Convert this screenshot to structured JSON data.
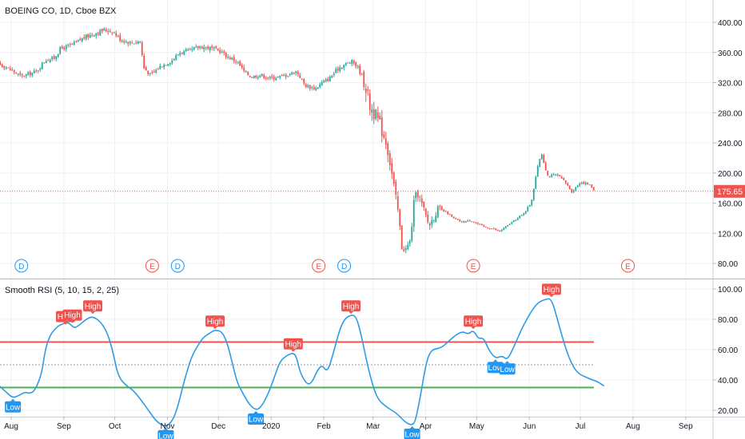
{
  "header": {
    "main_legend": "BOEING CO, 1D, Cboe BZX",
    "indicator_legend": "Smooth RSI  (5, 10, 15, 2, 25)"
  },
  "colors": {
    "up": "#26a69a",
    "down": "#ef5350",
    "rsi_line": "#2e9be6",
    "upper_band": "#ef5350",
    "lower_band": "#4caf50",
    "mid_band": "#9e9e9e",
    "price_line": "#ef5350",
    "high_tag": "#ef5350",
    "low_tag": "#2196f3",
    "dividend_event": "#2196f3",
    "earnings_event": "#ef5350"
  },
  "chart_data": [
    {
      "type": "candlestick",
      "title": "BOEING CO, 1D, Cboe BZX",
      "y_ticks": [
        "400.00",
        "360.00",
        "320.00",
        "280.00",
        "240.00",
        "200.00",
        "160.00",
        "120.00",
        "80.00"
      ],
      "ylim": [
        60,
        420
      ],
      "last_price": 175.65,
      "last_price_label": "175.65",
      "x_ticks": [
        "Aug",
        "Sep",
        "Oct",
        "Nov",
        "Dec",
        "2020",
        "Feb",
        "Mar",
        "Apr",
        "May",
        "Jun",
        "Jul",
        "Aug",
        "Sep"
      ],
      "grid": true,
      "price_path": [
        [
          "2019-07-22",
          356
        ],
        [
          "2019-07-25",
          345
        ],
        [
          "2019-07-31",
          338
        ],
        [
          "2019-08-07",
          328
        ],
        [
          "2019-08-12",
          332
        ],
        [
          "2019-08-16",
          335
        ],
        [
          "2019-08-21",
          350
        ],
        [
          "2019-08-26",
          352
        ],
        [
          "2019-08-30",
          365
        ],
        [
          "2019-09-06",
          370
        ],
        [
          "2019-09-13",
          380
        ],
        [
          "2019-09-20",
          386
        ],
        [
          "2019-09-25",
          390
        ],
        [
          "2019-09-30",
          388
        ],
        [
          "2019-10-04",
          378
        ],
        [
          "2019-10-10",
          373
        ],
        [
          "2019-10-16",
          375
        ],
        [
          "2019-10-18",
          340
        ],
        [
          "2019-10-22",
          330
        ],
        [
          "2019-10-28",
          342
        ],
        [
          "2019-11-04",
          350
        ],
        [
          "2019-11-08",
          360
        ],
        [
          "2019-11-14",
          362
        ],
        [
          "2019-11-20",
          368
        ],
        [
          "2019-11-26",
          366
        ],
        [
          "2019-12-02",
          362
        ],
        [
          "2019-12-06",
          355
        ],
        [
          "2019-12-12",
          348
        ],
        [
          "2019-12-16",
          335
        ],
        [
          "2019-12-20",
          328
        ],
        [
          "2019-12-26",
          330
        ],
        [
          "2019-12-31",
          326
        ],
        [
          "2020-01-06",
          328
        ],
        [
          "2020-01-10",
          330
        ],
        [
          "2020-01-16",
          335
        ],
        [
          "2020-01-21",
          316
        ],
        [
          "2020-01-27",
          312
        ],
        [
          "2020-01-31",
          320
        ],
        [
          "2020-02-04",
          325
        ],
        [
          "2020-02-10",
          340
        ],
        [
          "2020-02-14",
          345
        ],
        [
          "2020-02-18",
          348
        ],
        [
          "2020-02-21",
          340
        ],
        [
          "2020-02-25",
          322
        ],
        [
          "2020-02-28",
          290
        ],
        [
          "2020-03-04",
          270
        ],
        [
          "2020-03-09",
          240
        ],
        [
          "2020-03-12",
          200
        ],
        [
          "2020-03-16",
          145
        ],
        [
          "2020-03-18",
          100
        ],
        [
          "2020-03-20",
          98
        ],
        [
          "2020-03-23",
          110
        ],
        [
          "2020-03-25",
          160
        ],
        [
          "2020-03-27",
          175
        ],
        [
          "2020-03-31",
          150
        ],
        [
          "2020-04-03",
          130
        ],
        [
          "2020-04-08",
          152
        ],
        [
          "2020-04-13",
          148
        ],
        [
          "2020-04-17",
          140
        ],
        [
          "2020-04-22",
          135
        ],
        [
          "2020-04-28",
          137
        ],
        [
          "2020-05-01",
          133
        ],
        [
          "2020-05-06",
          128
        ],
        [
          "2020-05-11",
          126
        ],
        [
          "2020-05-14",
          122
        ],
        [
          "2020-05-19",
          130
        ],
        [
          "2020-05-22",
          135
        ],
        [
          "2020-05-28",
          145
        ],
        [
          "2020-06-02",
          160
        ],
        [
          "2020-06-05",
          198
        ],
        [
          "2020-06-08",
          228
        ],
        [
          "2020-06-10",
          210
        ],
        [
          "2020-06-12",
          195
        ],
        [
          "2020-06-17",
          198
        ],
        [
          "2020-06-22",
          188
        ],
        [
          "2020-06-26",
          175
        ],
        [
          "2020-07-01",
          188
        ],
        [
          "2020-07-06",
          185
        ],
        [
          "2020-07-10",
          175.65
        ]
      ],
      "events": [
        {
          "type": "dividend",
          "label": "D",
          "date": "2019-08-07"
        },
        {
          "type": "earnings",
          "label": "E",
          "date": "2019-10-23"
        },
        {
          "type": "dividend",
          "label": "D",
          "date": "2019-11-07"
        },
        {
          "type": "earnings",
          "label": "E",
          "date": "2020-01-29"
        },
        {
          "type": "dividend",
          "label": "D",
          "date": "2020-02-13"
        },
        {
          "type": "earnings",
          "label": "E",
          "date": "2020-04-29"
        },
        {
          "type": "earnings",
          "label": "E",
          "date": "2020-07-29"
        }
      ]
    },
    {
      "type": "line",
      "title": "Smooth RSI  (5, 10, 15, 2, 25)",
      "y_ticks": [
        "100.00",
        "80.00",
        "60.00",
        "40.00",
        "20.00"
      ],
      "ylim": [
        3,
        103
      ],
      "levels": {
        "upper": 65,
        "middle": 50,
        "lower": 35
      },
      "series": [
        {
          "name": "",
          "points": [
            [
              "2019-07-15",
              58
            ],
            [
              "2019-07-19",
              45
            ],
            [
              "2019-07-24",
              37
            ],
            [
              "2019-07-29",
              32
            ],
            [
              "2019-08-02",
              28
            ],
            [
              "2019-08-06",
              30
            ],
            [
              "2019-08-09",
              32
            ],
            [
              "2019-08-12",
              31
            ],
            [
              "2019-08-15",
              33
            ],
            [
              "2019-08-19",
              44
            ],
            [
              "2019-08-21",
              60
            ],
            [
              "2019-08-24",
              70
            ],
            [
              "2019-08-28",
              75
            ],
            [
              "2019-08-31",
              77
            ],
            [
              "2019-09-04",
              78
            ],
            [
              "2019-09-07",
              74
            ],
            [
              "2019-09-10",
              76
            ],
            [
              "2019-09-14",
              80
            ],
            [
              "2019-09-18",
              82
            ],
            [
              "2019-09-23",
              78
            ],
            [
              "2019-09-27",
              70
            ],
            [
              "2019-09-30",
              58
            ],
            [
              "2019-10-03",
              42
            ],
            [
              "2019-10-08",
              36
            ],
            [
              "2019-10-12",
              33
            ],
            [
              "2019-10-17",
              26
            ],
            [
              "2019-10-22",
              18
            ],
            [
              "2019-10-26",
              12
            ],
            [
              "2019-10-31",
              9
            ],
            [
              "2019-11-04",
              13
            ],
            [
              "2019-11-07",
              22
            ],
            [
              "2019-11-11",
              40
            ],
            [
              "2019-11-15",
              55
            ],
            [
              "2019-11-19",
              63
            ],
            [
              "2019-11-22",
              68
            ],
            [
              "2019-11-26",
              71
            ],
            [
              "2019-11-29",
              73
            ],
            [
              "2019-12-03",
              72
            ],
            [
              "2019-12-06",
              65
            ],
            [
              "2019-12-09",
              52
            ],
            [
              "2019-12-12",
              38
            ],
            [
              "2019-12-16",
              30
            ],
            [
              "2019-12-19",
              24
            ],
            [
              "2019-12-23",
              20
            ],
            [
              "2019-12-26",
              22
            ],
            [
              "2019-12-30",
              30
            ],
            [
              "2020-01-03",
              42
            ],
            [
              "2020-01-06",
              52
            ],
            [
              "2020-01-10",
              56
            ],
            [
              "2020-01-14",
              58
            ],
            [
              "2020-01-16",
              55
            ],
            [
              "2020-01-18",
              45
            ],
            [
              "2020-01-22",
              37
            ],
            [
              "2020-01-25",
              38
            ],
            [
              "2020-01-28",
              46
            ],
            [
              "2020-01-31",
              50
            ],
            [
              "2020-02-03",
              45
            ],
            [
              "2020-02-06",
              55
            ],
            [
              "2020-02-10",
              72
            ],
            [
              "2020-02-13",
              80
            ],
            [
              "2020-02-17",
              83
            ],
            [
              "2020-02-20",
              82
            ],
            [
              "2020-02-23",
              70
            ],
            [
              "2020-02-27",
              48
            ],
            [
              "2020-03-03",
              28
            ],
            [
              "2020-03-09",
              22
            ],
            [
              "2020-03-15",
              18
            ],
            [
              "2020-03-20",
              12
            ],
            [
              "2020-03-24",
              10
            ],
            [
              "2020-03-26",
              13
            ],
            [
              "2020-03-29",
              30
            ],
            [
              "2020-04-01",
              50
            ],
            [
              "2020-04-04",
              60
            ],
            [
              "2020-04-10",
              61
            ],
            [
              "2020-04-14",
              65
            ],
            [
              "2020-04-19",
              70
            ],
            [
              "2020-04-23",
              72
            ],
            [
              "2020-04-26",
              70
            ],
            [
              "2020-04-29",
              73
            ],
            [
              "2020-05-02",
              67
            ],
            [
              "2020-05-05",
              68
            ],
            [
              "2020-05-08",
              60
            ],
            [
              "2020-05-12",
              54
            ],
            [
              "2020-05-16",
              56
            ],
            [
              "2020-05-19",
              53
            ],
            [
              "2020-05-23",
              62
            ],
            [
              "2020-05-28",
              75
            ],
            [
              "2020-06-02",
              85
            ],
            [
              "2020-06-06",
              91
            ],
            [
              "2020-06-10",
              93
            ],
            [
              "2020-06-14",
              94
            ],
            [
              "2020-06-18",
              78
            ],
            [
              "2020-06-22",
              62
            ],
            [
              "2020-06-26",
              50
            ],
            [
              "2020-06-30",
              44
            ],
            [
              "2020-07-04",
              42
            ],
            [
              "2020-07-08",
              40
            ],
            [
              "2020-07-11",
              39
            ],
            [
              "2020-07-15",
              36
            ]
          ]
        }
      ],
      "markers": [
        {
          "label": "High",
          "date": "2019-09-02",
          "value": 76
        },
        {
          "label": "High",
          "date": "2019-09-06",
          "value": 77
        },
        {
          "label": "High",
          "date": "2019-09-18",
          "value": 83
        },
        {
          "label": "Low",
          "date": "2019-08-02",
          "value": 28
        },
        {
          "label": "Low",
          "date": "2019-10-31",
          "value": 9
        },
        {
          "label": "High",
          "date": "2019-11-29",
          "value": 73
        },
        {
          "label": "Low",
          "date": "2019-12-23",
          "value": 20
        },
        {
          "label": "High",
          "date": "2020-01-14",
          "value": 58
        },
        {
          "label": "High",
          "date": "2020-02-17",
          "value": 83
        },
        {
          "label": "Low",
          "date": "2020-03-24",
          "value": 10
        },
        {
          "label": "High",
          "date": "2020-04-29",
          "value": 73
        },
        {
          "label": "Low",
          "date": "2020-05-12",
          "value": 54
        },
        {
          "label": "Low",
          "date": "2020-05-19",
          "value": 53
        },
        {
          "label": "High",
          "date": "2020-06-14",
          "value": 94
        }
      ]
    }
  ]
}
